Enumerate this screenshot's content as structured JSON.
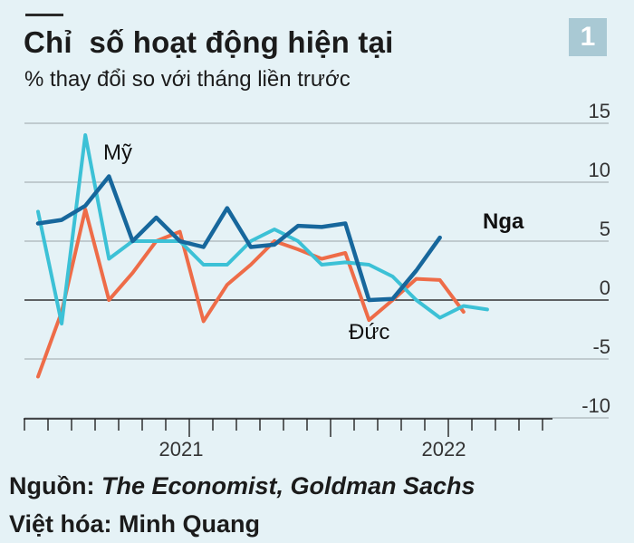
{
  "header": {
    "title": "Chỉ  số hoạt động hiện tại",
    "subtitle": "% thay đổi so với tháng liền trước",
    "badge": "1"
  },
  "footer": {
    "source_label": "Nguồn:",
    "source_names": "The Economist, Goldman Sachs",
    "credit": "Việt hóa: Minh Quang"
  },
  "chart_data": {
    "type": "line",
    "x": [
      "2020-08",
      "2020-09",
      "2020-10",
      "2020-11",
      "2020-12",
      "2021-01",
      "2021-02",
      "2021-03",
      "2021-04",
      "2021-05",
      "2021-06",
      "2021-07",
      "2021-08",
      "2021-09",
      "2021-10",
      "2021-11",
      "2021-12",
      "2022-01",
      "2022-02",
      "2022-03",
      "2022-04",
      "2022-05",
      "2022-06"
    ],
    "x_tick_labels": [
      "2021",
      "2022"
    ],
    "ylim": [
      -10,
      15
    ],
    "y_ticks": [
      15,
      10,
      5,
      0,
      -5,
      -10
    ],
    "y_tick_labels": [
      "15",
      "10",
      "5",
      "0",
      "-5",
      "-10"
    ],
    "grid": true,
    "series": [
      {
        "name": "Mỹ",
        "color": "#3cc1d6",
        "values": [
          7.5,
          -2,
          14,
          3.5,
          5,
          5,
          5,
          3,
          3,
          5,
          6,
          5,
          3,
          3.2,
          3,
          2,
          0,
          -1.5,
          -0.5,
          -0.8,
          null,
          null,
          null
        ]
      },
      {
        "name": "Nga",
        "color": "#17679c",
        "values": [
          6.5,
          6.8,
          8,
          10.5,
          5,
          7,
          5,
          4.5,
          7.8,
          4.5,
          4.7,
          6.3,
          6.2,
          6.5,
          0,
          0.1,
          2.5,
          5.3,
          null,
          null,
          null,
          null,
          null
        ]
      },
      {
        "name": "Đức",
        "color": "#ee6c48",
        "values": [
          -6.5,
          -1,
          7.7,
          0,
          2.3,
          5,
          5.8,
          -1.8,
          1.3,
          3,
          5,
          4.3,
          3.5,
          4,
          -1.7,
          0,
          1.8,
          1.7,
          -1,
          null,
          null,
          null,
          null
        ]
      }
    ]
  }
}
